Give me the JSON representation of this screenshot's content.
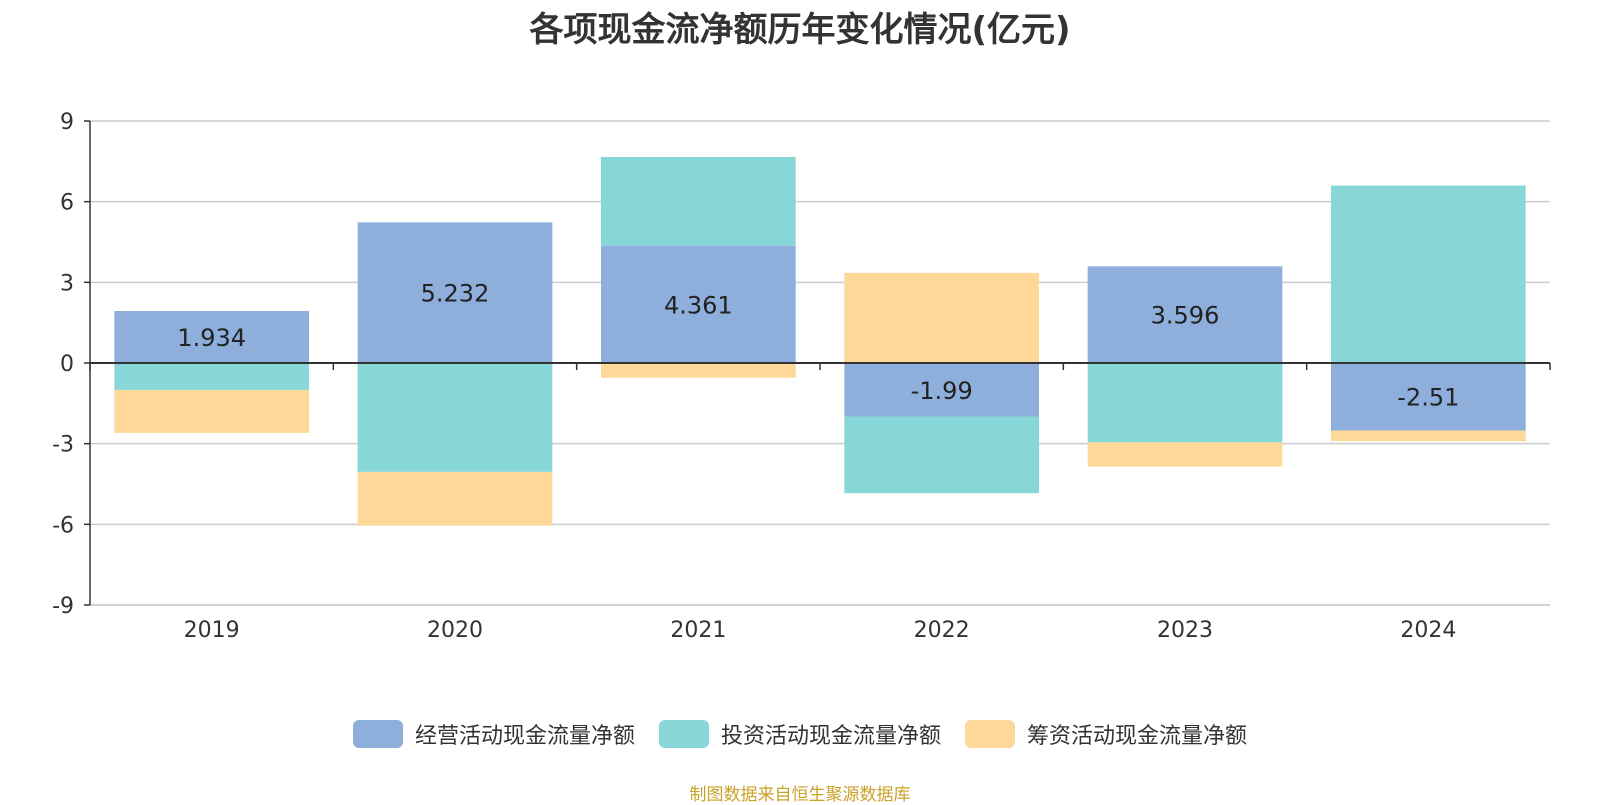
{
  "chart_data": {
    "type": "bar",
    "title": "各项现金流净额历年变化情况(亿元)",
    "categories": [
      "2019",
      "2020",
      "2021",
      "2022",
      "2023",
      "2024"
    ],
    "ylim": [
      -9,
      9
    ],
    "yticks": [
      9,
      6,
      3,
      0,
      -3,
      -6,
      -9
    ],
    "grid": true,
    "legend_position": "bottom",
    "stacked": true,
    "series": [
      {
        "name": "经营活动现金流量净额",
        "color": "#8eaedb",
        "values": [
          1.934,
          5.232,
          4.361,
          -1.99,
          3.596,
          -2.51
        ],
        "labels": [
          "1.934",
          "5.232",
          "4.361",
          "-1.99",
          "3.596",
          "-2.51"
        ]
      },
      {
        "name": "投资活动现金流量净额",
        "color": "#87d6d8",
        "values": [
          -1.0,
          -4.05,
          3.3,
          -2.85,
          -2.95,
          6.6
        ]
      },
      {
        "name": "筹资活动现金流量净额",
        "color": "#fdd899",
        "values": [
          -1.6,
          -2.0,
          -0.55,
          3.35,
          -0.9,
          -0.4
        ]
      }
    ]
  },
  "source": "制图数据来自恒生聚源数据库"
}
